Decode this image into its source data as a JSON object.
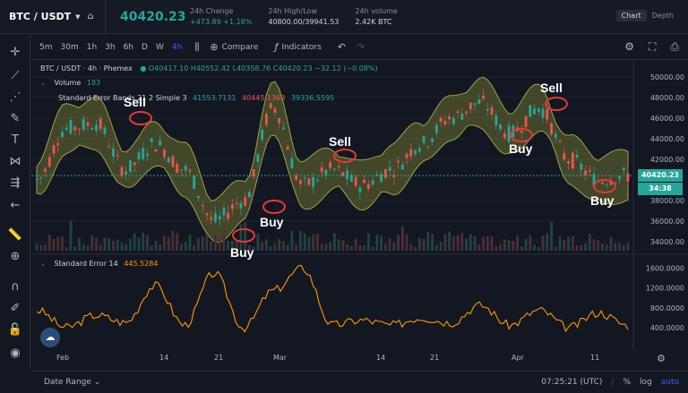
{
  "header": {
    "pair": "BTC / USDT",
    "last_price": "40420.23",
    "stats": [
      {
        "label": "24h Change",
        "value": "+473.89 +1.18%"
      },
      {
        "label": "24h High/Low",
        "value": "40800.00/39941.53"
      },
      {
        "label": "24h volume",
        "value": "2.42K BTC"
      }
    ],
    "tabs": [
      "Chart",
      "Depth"
    ]
  },
  "toolbar": {
    "timeframes": [
      "5m",
      "30m",
      "1h",
      "3h",
      "6h",
      "D",
      "W",
      "4h"
    ],
    "compare": "Compare",
    "indicators": "Indicators"
  },
  "legend": {
    "symbol": "BTC / USDT · 4h · Phemex",
    "ohlc": "O40417.10 H40552.42 L40358.76 C40420.23 −32.12 (−0.08%)",
    "volume_label": "Volume",
    "volume_value": "183",
    "band_label": "Standard Error Bands 21 2 Simple 3",
    "band_v1": "41553.7131",
    "band_v2": "40445.1363",
    "band_v3": "39336.5595",
    "se_label": "Standard Error 14",
    "se_value": "445.5284"
  },
  "price_axis": [
    "50000.00",
    "48000.00",
    "46000.00",
    "44000.00",
    "42000.00",
    "38000.00",
    "36000.00",
    "34000.00"
  ],
  "price_tag": "40420.23",
  "countdown_tag": "34:38",
  "se_axis": [
    "1600.0000",
    "1200.0000",
    "800.0000",
    "400.0000"
  ],
  "time_axis": [
    "Feb",
    "14",
    "21",
    "Mar",
    "14",
    "21",
    "Apr",
    "11"
  ],
  "annotations": {
    "sell1": "Sell",
    "sell2": "Sell",
    "sell3": "Sell",
    "buy1": "Buy",
    "buy2": "Buy",
    "buy3": "Buy",
    "buy4": "Buy"
  },
  "bottom": {
    "date_range": "Date Range",
    "clock": "07:25:21 (UTC)",
    "pct": "%",
    "log": "log",
    "auto": "auto"
  },
  "chart_data": {
    "type": "line",
    "title": "",
    "series": [
      {
        "name": "Standard Error Bands",
        "values": [
          40000,
          45000,
          45500,
          41000,
          43500,
          41000,
          36000,
          38000,
          47000,
          39500,
          41000,
          39500,
          41000,
          43500,
          46000,
          47500,
          44500,
          47000,
          42000,
          40000,
          40420
        ]
      },
      {
        "name": "Standard Error 14",
        "values": [
          750,
          400,
          650,
          500,
          1250,
          450,
          1500,
          400,
          1150,
          1600,
          450,
          550,
          450,
          600,
          500,
          850,
          450,
          750,
          400,
          700,
          445
        ]
      }
    ],
    "colors": {
      "band": "#8a8f3a",
      "price_up": "#26a69a",
      "price_down": "#ef5350",
      "se": "#ff9800"
    }
  }
}
